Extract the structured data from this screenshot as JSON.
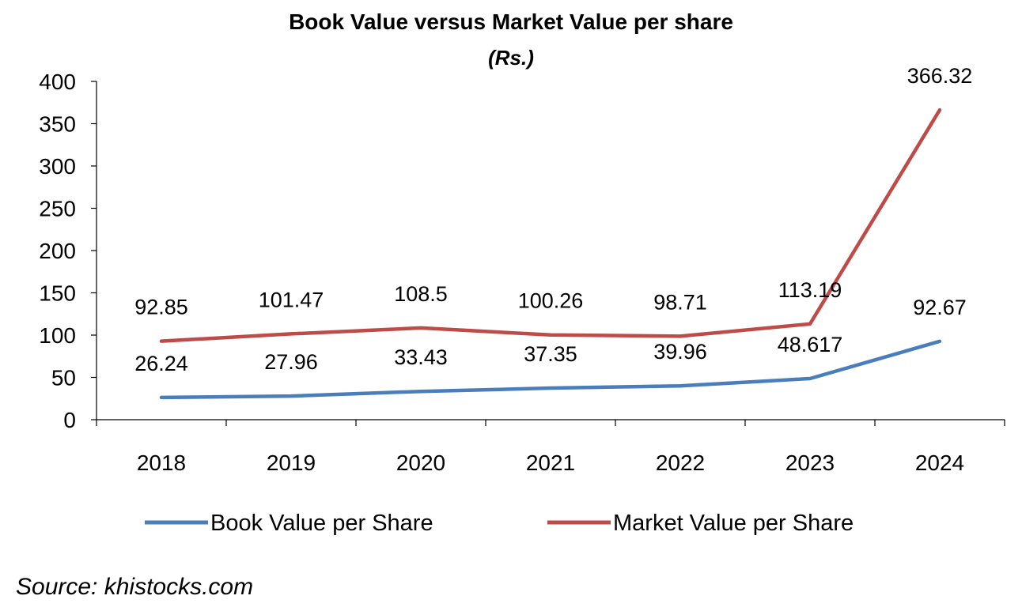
{
  "chart_data": {
    "type": "line",
    "title": "Book Value versus Market Value per share",
    "subtitle": "(Rs.)",
    "xlabel": "",
    "ylabel": "",
    "ylim": [
      0,
      400
    ],
    "yticks": [
      0,
      50,
      100,
      150,
      200,
      250,
      300,
      350,
      400
    ],
    "categories": [
      "2018",
      "2019",
      "2020",
      "2021",
      "2022",
      "2023",
      "2024"
    ],
    "series": [
      {
        "name": "Book Value per Share",
        "color": "#4a7ebb",
        "values": [
          26.24,
          27.96,
          33.43,
          37.35,
          39.96,
          48.617,
          92.67
        ],
        "labels": [
          "26.24",
          "27.96",
          "33.43",
          "37.35",
          "39.96",
          "48.617",
          "92.67"
        ]
      },
      {
        "name": "Market Value per Share",
        "color": "#be4b48",
        "values": [
          92.85,
          101.47,
          108.5,
          100.26,
          98.71,
          113.19,
          366.32
        ],
        "labels": [
          "92.85",
          "101.47",
          "108.5",
          "100.26",
          "98.71",
          "113.19",
          "366.32"
        ]
      }
    ],
    "grid": false,
    "legend": "bottom"
  },
  "source": "Source: khistocks.com"
}
